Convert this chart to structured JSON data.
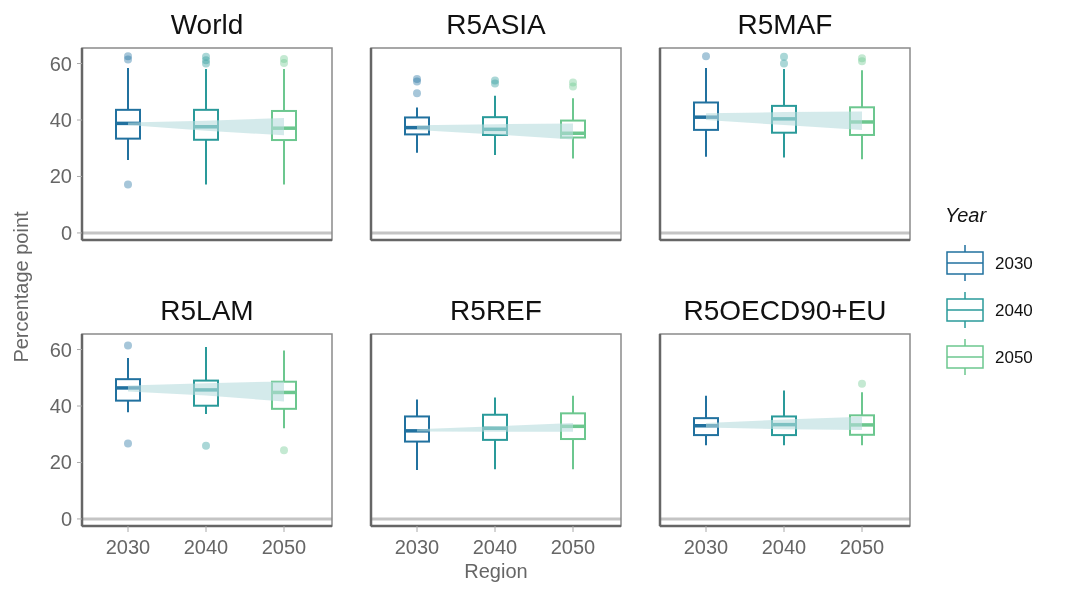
{
  "chart_data": [
    {
      "type": "box",
      "title": "World",
      "legend_title": "Year",
      "legend": "right",
      "categories": [
        "2030",
        "2040",
        "2050"
      ],
      "ylim": [
        -2.5,
        65.5
      ],
      "yticks": [
        0,
        20,
        40,
        60
      ],
      "tick_labels": "y",
      "ref_lines": [
        {
          "axis": "y",
          "value": 0,
          "color": "#c4c4c4"
        }
      ],
      "series": [
        {
          "name": "2030",
          "color": "#21719f",
          "boxes": [
            {
              "low": 25.8,
              "q1": 33.4,
              "median": 38.8,
              "q3": 43.6,
              "high": 58.4,
              "outliers": [
                62.6,
                61.4,
                17.2
              ]
            },
            null,
            null
          ]
        },
        {
          "name": "2040",
          "color": "#2a9a9a",
          "boxes": [
            null,
            {
              "low": 17.2,
              "q1": 33.0,
              "median": 37.6,
              "q3": 43.6,
              "high": 58.1,
              "outliers": [
                62.4,
                61.2,
                60.0
              ]
            },
            null
          ]
        },
        {
          "name": "2050",
          "color": "#6cc78f",
          "boxes": [
            null,
            null,
            {
              "low": 17.2,
              "q1": 32.9,
              "median": 37.1,
              "q3": 43.2,
              "high": 58.1,
              "outliers": [
                61.6,
                60.2
              ]
            }
          ]
        },
        {
          "type": "line",
          "color": "#b7dcdd",
          "values": [
            null,
            null,
            null
          ],
          "lower": [
            38.2,
            36.2,
            34.6
          ],
          "upper": [
            39.1,
            39.7,
            40.7
          ]
        }
      ]
    },
    {
      "type": "box",
      "title": "R5ASIA",
      "categories": [
        "2030",
        "2040",
        "2050"
      ],
      "ylim": [
        -2.5,
        65.5
      ],
      "yticks": [
        0,
        20,
        40,
        60
      ],
      "tick_labels": false,
      "ref_lines": [
        {
          "axis": "y",
          "value": 0,
          "color": "#c4c4c4"
        }
      ],
      "series": [
        {
          "color": "#21719f",
          "boxes": [
            {
              "low": 28.4,
              "q1": 34.9,
              "median": 37.3,
              "q3": 40.9,
              "high": 44.4,
              "outliers": [
                54.5,
                53.6,
                49.5
              ]
            },
            null,
            null
          ]
        },
        {
          "color": "#2a9a9a",
          "boxes": [
            null,
            {
              "low": 27.6,
              "q1": 34.7,
              "median": 36.7,
              "q3": 41.0,
              "high": 48.6,
              "outliers": [
                54.0,
                52.9
              ]
            },
            null
          ]
        },
        {
          "color": "#6cc78f",
          "boxes": [
            null,
            null,
            {
              "low": 26.4,
              "q1": 33.8,
              "median": 35.3,
              "q3": 39.8,
              "high": 47.7,
              "outliers": [
                53.3,
                51.9
              ]
            }
          ]
        },
        {
          "type": "line",
          "color": "#b7dcdd",
          "values": [
            null,
            null,
            null
          ],
          "lower": [
            36.5,
            34.9,
            33.1
          ],
          "upper": [
            38.1,
            38.5,
            38.8
          ]
        }
      ]
    },
    {
      "type": "box",
      "title": "R5MAF",
      "categories": [
        "2030",
        "2040",
        "2050"
      ],
      "ylim": [
        -2.5,
        65.5
      ],
      "yticks": [
        0,
        20,
        40,
        60
      ],
      "tick_labels": false,
      "ref_lines": [
        {
          "axis": "y",
          "value": 0,
          "color": "#c4c4c4"
        }
      ],
      "series": [
        {
          "color": "#21719f",
          "boxes": [
            {
              "low": 27.0,
              "q1": 36.5,
              "median": 41.0,
              "q3": 46.2,
              "high": 58.4,
              "outliers": [
                62.6
              ]
            },
            null,
            null
          ]
        },
        {
          "color": "#2a9a9a",
          "boxes": [
            null,
            {
              "low": 26.7,
              "q1": 35.5,
              "median": 40.4,
              "q3": 45.0,
              "high": 58.1,
              "outliers": [
                62.4,
                60.0
              ]
            },
            null
          ]
        },
        {
          "color": "#6cc78f",
          "boxes": [
            null,
            null,
            {
              "low": 26.1,
              "q1": 34.7,
              "median": 39.3,
              "q3": 44.5,
              "high": 57.6,
              "outliers": [
                61.9,
                60.8
              ]
            }
          ]
        },
        {
          "type": "line",
          "color": "#b7dcdd",
          "values": [
            null,
            null,
            null
          ],
          "lower": [
            40.0,
            38.2,
            36.5
          ],
          "upper": [
            42.4,
            42.8,
            43.0
          ]
        }
      ]
    },
    {
      "type": "box",
      "title": "R5LAM",
      "ylabel": "Percentage point",
      "categories": [
        "2030",
        "2040",
        "2050"
      ],
      "ylim": [
        -2.5,
        65.5
      ],
      "yticks": [
        0,
        20,
        40,
        60
      ],
      "ref_lines": [
        {
          "axis": "y",
          "value": 0,
          "color": "#c4c4c4"
        }
      ],
      "series": [
        {
          "color": "#21719f",
          "boxes": [
            {
              "low": 37.8,
              "q1": 41.9,
              "median": 46.4,
              "q3": 49.5,
              "high": 57.0,
              "outliers": [
                61.4,
                26.7
              ]
            },
            null,
            null
          ]
        },
        {
          "color": "#2a9a9a",
          "boxes": [
            null,
            {
              "low": 37.2,
              "q1": 40.1,
              "median": 45.7,
              "q3": 49.0,
              "high": 60.9,
              "outliers": [
                25.9
              ]
            },
            null
          ]
        },
        {
          "color": "#6cc78f",
          "boxes": [
            null,
            null,
            {
              "low": 32.1,
              "q1": 39.0,
              "median": 44.8,
              "q3": 48.6,
              "high": 59.7,
              "outliers": [
                24.3
              ]
            }
          ]
        },
        {
          "type": "line",
          "color": "#b7dcdd",
          "values": [
            null,
            null,
            null
          ],
          "lower": [
            45.1,
            43.7,
            41.6
          ],
          "upper": [
            47.3,
            48.1,
            48.7
          ]
        }
      ]
    },
    {
      "type": "box",
      "title": "R5REF",
      "xlabel": "Region",
      "categories": [
        "2030",
        "2040",
        "2050"
      ],
      "ylim": [
        -2.5,
        65.5
      ],
      "yticks": [
        0,
        20,
        40,
        60
      ],
      "tick_labels": "x",
      "ref_lines": [
        {
          "axis": "y",
          "value": 0,
          "color": "#c4c4c4"
        }
      ],
      "series": [
        {
          "color": "#21719f",
          "boxes": [
            {
              "low": 17.3,
              "q1": 27.4,
              "median": 31.2,
              "q3": 36.3,
              "high": 42.3
            },
            null,
            null
          ]
        },
        {
          "color": "#2a9a9a",
          "boxes": [
            null,
            {
              "low": 17.6,
              "q1": 28.0,
              "median": 32.1,
              "q3": 36.9,
              "high": 43.0
            },
            null
          ]
        },
        {
          "color": "#6cc78f",
          "boxes": [
            null,
            null,
            {
              "low": 17.6,
              "q1": 28.3,
              "median": 32.8,
              "q3": 37.4,
              "high": 43.6
            }
          ]
        },
        {
          "type": "line",
          "color": "#b7dcdd",
          "values": [
            null,
            null,
            null
          ],
          "lower": [
            31.0,
            30.9,
            30.9
          ],
          "upper": [
            31.8,
            32.8,
            34.0
          ]
        }
      ]
    },
    {
      "type": "box",
      "title": "R5OECD90+EU",
      "categories": [
        "2030",
        "2040",
        "2050"
      ],
      "ylim": [
        -2.5,
        65.5
      ],
      "yticks": [
        0,
        20,
        40,
        60
      ],
      "tick_labels": "x",
      "ref_lines": [
        {
          "axis": "y",
          "value": 0,
          "color": "#c4c4c4"
        }
      ],
      "series": [
        {
          "color": "#21719f",
          "boxes": [
            {
              "low": 26.1,
              "q1": 29.7,
              "median": 33.0,
              "q3": 35.7,
              "high": 43.6
            },
            null,
            null
          ]
        },
        {
          "color": "#2a9a9a",
          "boxes": [
            null,
            {
              "low": 26.1,
              "q1": 29.7,
              "median": 33.4,
              "q3": 36.3,
              "high": 45.5
            },
            null
          ]
        },
        {
          "color": "#6cc78f",
          "boxes": [
            null,
            null,
            {
              "low": 26.1,
              "q1": 29.8,
              "median": 33.3,
              "q3": 36.7,
              "high": 44.9,
              "outliers": [
                47.9
              ]
            }
          ]
        },
        {
          "type": "line",
          "color": "#b7dcdd",
          "values": [
            null,
            null,
            null
          ],
          "lower": [
            32.4,
            31.8,
            31.5
          ],
          "upper": [
            34.0,
            35.2,
            36.2
          ]
        }
      ]
    }
  ]
}
